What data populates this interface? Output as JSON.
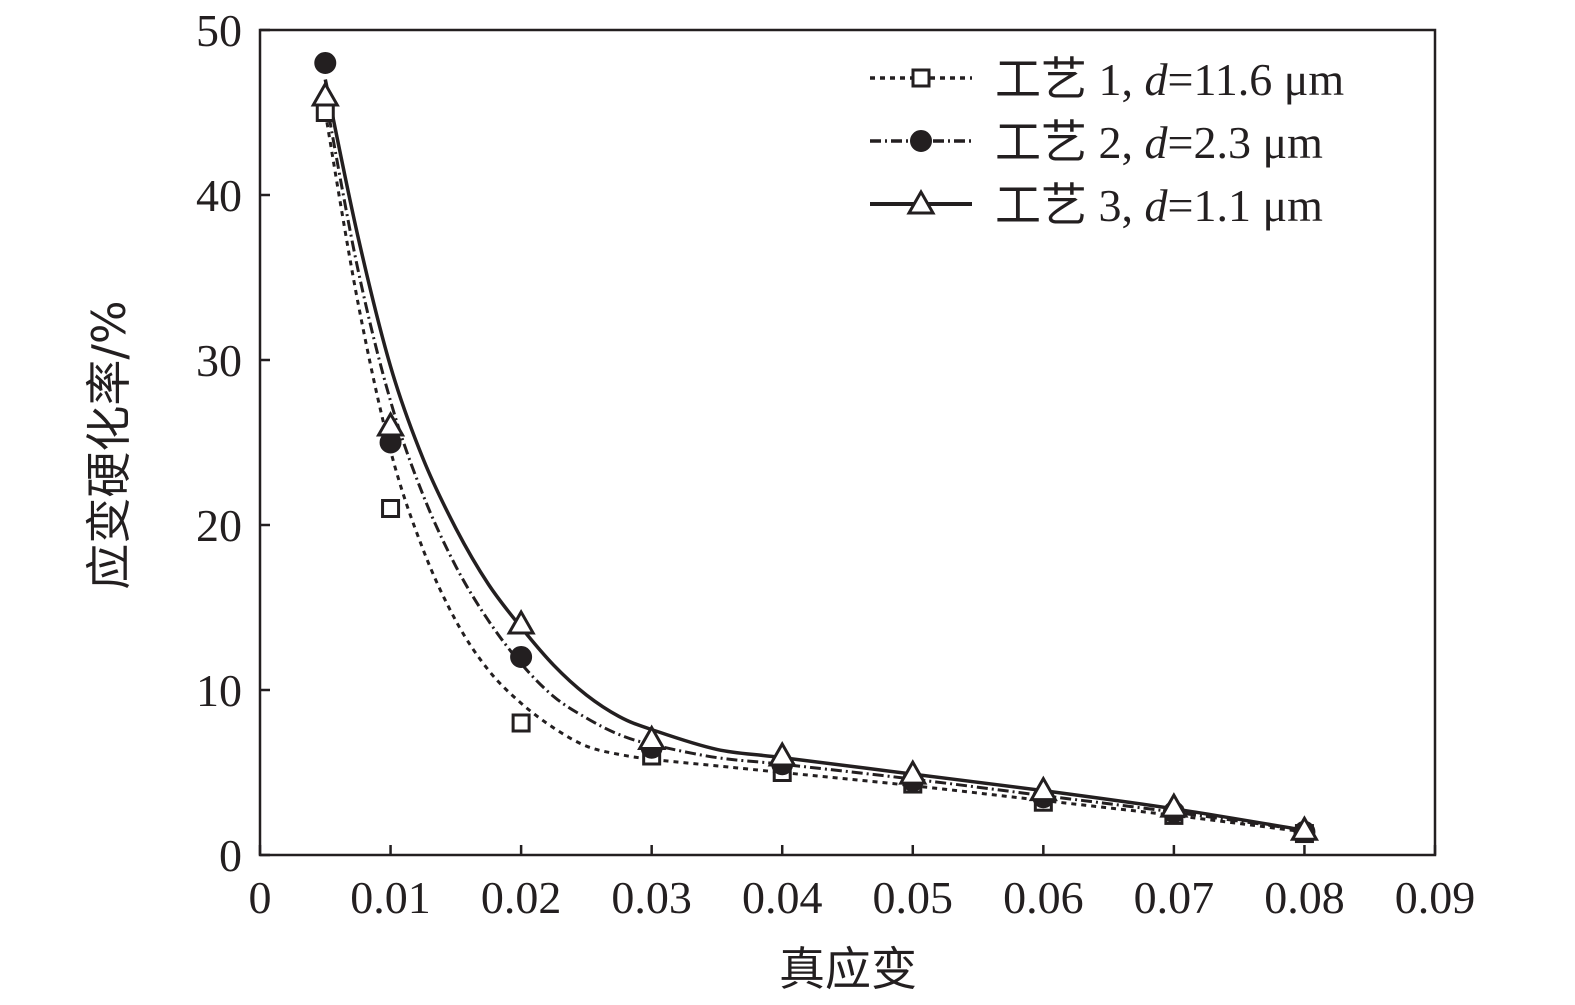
{
  "chart_data": {
    "type": "scatter",
    "xlabel": "真应变",
    "ylabel": "应变硬化率/%",
    "xlim": [
      0,
      0.09
    ],
    "ylim": [
      0,
      50
    ],
    "xticks": [
      0,
      0.01,
      0.02,
      0.03,
      0.04,
      0.05,
      0.06,
      0.07,
      0.08,
      0.09
    ],
    "xtick_labels": [
      "0",
      "0.01",
      "0.02",
      "0.03",
      "0.04",
      "0.05",
      "0.06",
      "0.07",
      "0.08",
      "0.09"
    ],
    "yticks": [
      0,
      10,
      20,
      30,
      40,
      50
    ],
    "ytick_labels": [
      "0",
      "10",
      "20",
      "30",
      "40",
      "50"
    ],
    "grid": false,
    "legend_position": "top-right",
    "series": [
      {
        "name_prefix": "工艺 1, ",
        "name_italic": "d",
        "name_suffix": "=11.6 μm",
        "marker": "open-square",
        "line_style": "dotted",
        "color": "#231f20",
        "points": {
          "x": [
            0.005,
            0.01,
            0.02,
            0.03,
            0.04,
            0.05,
            0.06,
            0.07,
            0.08
          ],
          "y": [
            45,
            21,
            8,
            6,
            5,
            4.3,
            3.2,
            2.4,
            1.3
          ]
        },
        "fit": {
          "x": [
            0.005,
            0.0075,
            0.01,
            0.0125,
            0.015,
            0.0175,
            0.02,
            0.0225,
            0.025,
            0.0275,
            0.03,
            0.035,
            0.04,
            0.05,
            0.06,
            0.07,
            0.08
          ],
          "y": [
            45,
            33.5,
            24.5,
            18.5,
            14.2,
            11.2,
            9.2,
            7.7,
            6.6,
            6.1,
            5.8,
            5.4,
            5.0,
            4.2,
            3.3,
            2.4,
            1.4
          ]
        }
      },
      {
        "name_prefix": "工艺 2, ",
        "name_italic": "d",
        "name_suffix": "=2.3 μm",
        "marker": "filled-circle",
        "line_style": "dash-dot",
        "color": "#231f20",
        "points": {
          "x": [
            0.005,
            0.01,
            0.02,
            0.03,
            0.04,
            0.05,
            0.06,
            0.07,
            0.08
          ],
          "y": [
            48,
            25,
            12,
            6.5,
            5.5,
            4.5,
            3.5,
            2.6,
            1.4
          ]
        },
        "fit": {
          "x": [
            0.005,
            0.0075,
            0.01,
            0.0125,
            0.015,
            0.0175,
            0.02,
            0.0225,
            0.025,
            0.0275,
            0.03,
            0.035,
            0.04,
            0.05,
            0.06,
            0.07,
            0.08
          ],
          "y": [
            46,
            35.5,
            27.5,
            21.8,
            17.5,
            14.2,
            11.6,
            9.6,
            8.3,
            7.3,
            6.7,
            5.9,
            5.5,
            4.6,
            3.6,
            2.6,
            1.5
          ]
        }
      },
      {
        "name_prefix": "工艺 3, ",
        "name_italic": "d",
        "name_suffix": "=1.1 μm",
        "marker": "open-triangle",
        "line_style": "solid",
        "color": "#231f20",
        "points": {
          "x": [
            0.005,
            0.01,
            0.02,
            0.03,
            0.04,
            0.05,
            0.06,
            0.07,
            0.08
          ],
          "y": [
            46,
            26,
            14,
            7,
            6,
            4.9,
            3.9,
            2.9,
            1.5
          ]
        },
        "fit": {
          "x": [
            0.005,
            0.0075,
            0.01,
            0.0125,
            0.015,
            0.0175,
            0.02,
            0.0225,
            0.025,
            0.0275,
            0.03,
            0.035,
            0.04,
            0.05,
            0.06,
            0.07,
            0.08
          ],
          "y": [
            47,
            37.5,
            29.6,
            24.0,
            19.8,
            16.4,
            13.8,
            11.5,
            9.7,
            8.4,
            7.6,
            6.4,
            5.9,
            4.9,
            3.9,
            2.8,
            1.5
          ]
        }
      }
    ]
  }
}
